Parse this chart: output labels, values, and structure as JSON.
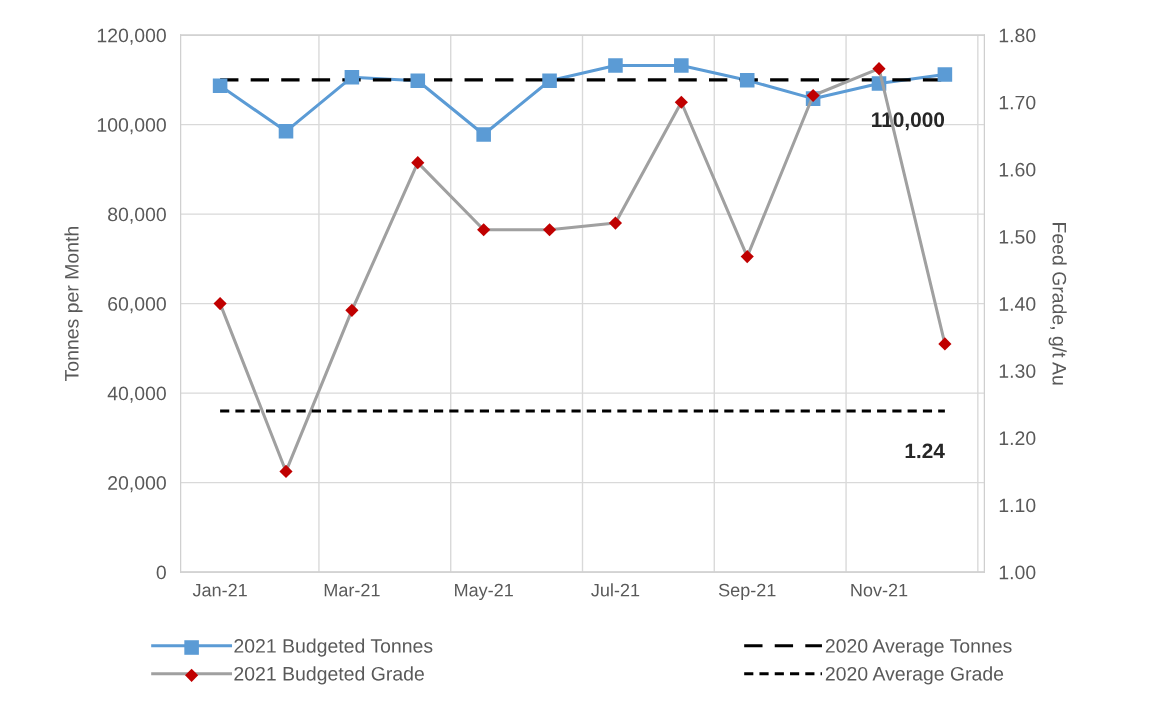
{
  "chart_data": {
    "type": "line",
    "ylabel": "Tonnes per Month",
    "y2label": "Feed Grade, g/t Au",
    "categories": [
      "Jan-21",
      null,
      "Mar-21",
      null,
      "May-21",
      null,
      "Jul-21",
      null,
      "Sep-21",
      null,
      "Nov-21",
      null
    ],
    "series": [
      {
        "name": "2021 Budgeted Tonnes",
        "color": "#5b9bd5",
        "marker": "square",
        "line_style": "solid",
        "values": [
          108700,
          98500,
          110600,
          109800,
          97800,
          109800,
          113200,
          113200,
          109900,
          105800,
          109200,
          111200
        ]
      },
      {
        "name": "2021 Budgeted Grade",
        "color": "#a0a0a0",
        "colors": [
          "#c00000",
          "#c00000",
          "#c00000",
          "#c00000",
          "#c00000",
          "#c00000",
          "#c00000",
          "#c00000",
          "#c00000",
          "#c00000",
          "#c00000",
          "#c00000"
        ],
        "marker": "diamond",
        "line_style": "solid",
        "axis": "y2",
        "values": [
          1.4,
          1.15,
          1.39,
          1.61,
          1.51,
          1.51,
          1.52,
          1.7,
          1.47,
          1.71,
          1.75,
          1.34
        ]
      },
      {
        "name": "2020 Average Tonnes",
        "color": "#000000",
        "marker": "none",
        "line_style": "dashed",
        "values": [
          110000,
          110000,
          110000,
          110000,
          110000,
          110000,
          110000,
          110000,
          110000,
          110000,
          110000,
          110000
        ],
        "value_labels": [
          null,
          null,
          null,
          null,
          null,
          null,
          null,
          null,
          null,
          null,
          null,
          "110,000"
        ]
      },
      {
        "name": "2020 Average Grade",
        "color": "#000000",
        "marker": "none",
        "line_style": "dotted",
        "axis": "y2",
        "values": [
          1.24,
          1.24,
          1.24,
          1.24,
          1.24,
          1.24,
          1.24,
          1.24,
          1.24,
          1.24,
          1.24,
          1.24
        ],
        "value_labels": [
          null,
          null,
          null,
          null,
          null,
          null,
          null,
          null,
          null,
          null,
          null,
          "1.24"
        ]
      }
    ],
    "ylim": [
      0,
      120000
    ],
    "yticks": [
      {
        "value": 0,
        "label": "0"
      },
      {
        "value": 20000,
        "label": "20,000"
      },
      {
        "value": 40000,
        "label": "40,000"
      },
      {
        "value": 60000,
        "label": "60,000"
      },
      {
        "value": 80000,
        "label": "80,000"
      },
      {
        "value": 100000,
        "label": "100,000"
      },
      {
        "value": 120000,
        "label": "120,000"
      }
    ],
    "y2lim": [
      1.0,
      1.8
    ],
    "y2ticks": [
      {
        "value": 1.0,
        "label": "1.00"
      },
      {
        "value": 1.1,
        "label": "1.10"
      },
      {
        "value": 1.2,
        "label": "1.20"
      },
      {
        "value": 1.3,
        "label": "1.30"
      },
      {
        "value": 1.4,
        "label": "1.40"
      },
      {
        "value": 1.5,
        "label": "1.50"
      },
      {
        "value": 1.6,
        "label": "1.60"
      },
      {
        "value": 1.7,
        "label": "1.70"
      },
      {
        "value": 1.8,
        "label": "1.80"
      }
    ],
    "grid": true,
    "legend": "bottom"
  }
}
